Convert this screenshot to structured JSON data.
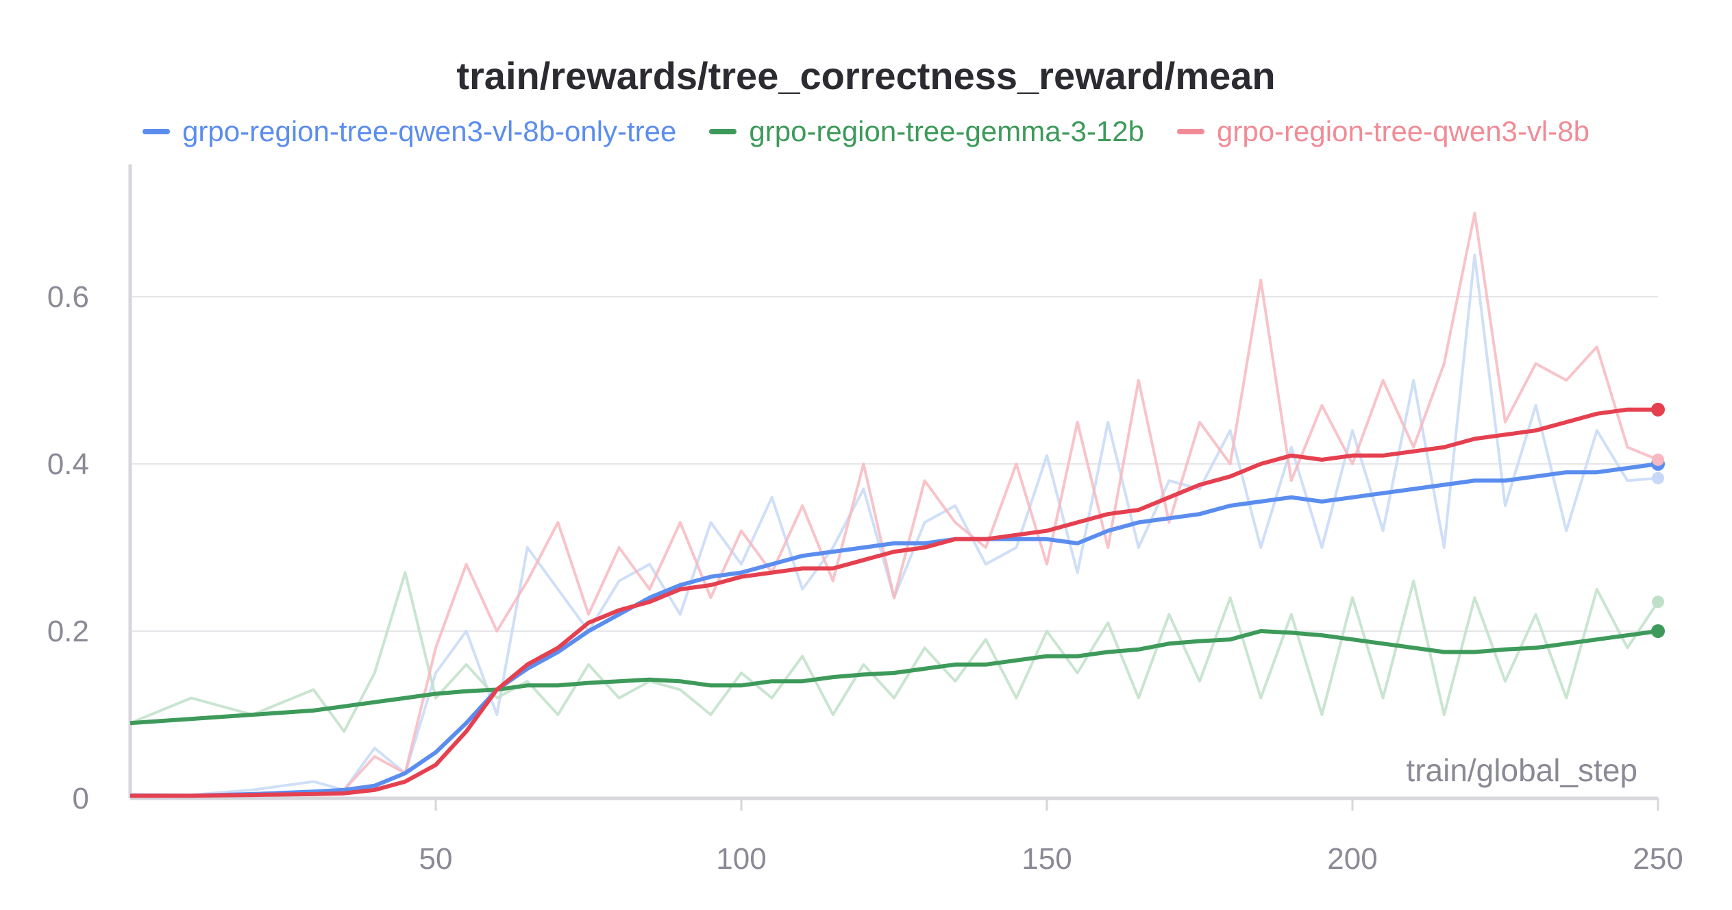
{
  "chart_data": {
    "type": "line",
    "title": "train/rewards/tree_correctness_reward/mean",
    "xlabel": "train/global_step",
    "ylabel": "",
    "xlim": [
      0,
      250
    ],
    "ylim": [
      0,
      0.75
    ],
    "x_ticks": [
      "50",
      "100",
      "150",
      "200",
      "250"
    ],
    "y_ticks": [
      "0",
      "0.2",
      "0.4",
      "0.6"
    ],
    "grid": true,
    "legend_position": "top",
    "series": [
      {
        "name": "grpo-region-tree-qwen3-vl-8b-only-tree",
        "color": "#5b8def",
        "raw_color": "#c7d9f7",
        "x": [
          0,
          10,
          20,
          30,
          35,
          40,
          45,
          50,
          55,
          60,
          65,
          70,
          75,
          80,
          85,
          90,
          95,
          100,
          105,
          110,
          115,
          120,
          125,
          130,
          135,
          140,
          145,
          150,
          155,
          160,
          165,
          170,
          175,
          180,
          185,
          190,
          195,
          200,
          205,
          210,
          215,
          220,
          225,
          230,
          235,
          240,
          245,
          250
        ],
        "smoothed": [
          0.003,
          0.003,
          0.005,
          0.008,
          0.01,
          0.015,
          0.03,
          0.055,
          0.09,
          0.13,
          0.155,
          0.175,
          0.2,
          0.22,
          0.24,
          0.255,
          0.265,
          0.27,
          0.28,
          0.29,
          0.295,
          0.3,
          0.305,
          0.305,
          0.31,
          0.31,
          0.31,
          0.31,
          0.305,
          0.32,
          0.33,
          0.335,
          0.34,
          0.35,
          0.355,
          0.36,
          0.355,
          0.36,
          0.365,
          0.37,
          0.375,
          0.38,
          0.38,
          0.385,
          0.39,
          0.39,
          0.395,
          0.4
        ],
        "raw": [
          0.005,
          0.004,
          0.01,
          0.02,
          0.01,
          0.06,
          0.03,
          0.15,
          0.2,
          0.1,
          0.3,
          0.25,
          0.2,
          0.26,
          0.28,
          0.22,
          0.33,
          0.28,
          0.36,
          0.25,
          0.3,
          0.37,
          0.24,
          0.33,
          0.35,
          0.28,
          0.3,
          0.41,
          0.27,
          0.45,
          0.3,
          0.38,
          0.37,
          0.44,
          0.3,
          0.42,
          0.3,
          0.44,
          0.32,
          0.5,
          0.3,
          0.65,
          0.35,
          0.47,
          0.32,
          0.44,
          0.38,
          0.383
        ]
      },
      {
        "name": "grpo-region-tree-gemma-3-12b",
        "color": "#3d9a5a",
        "raw_color": "#bfe0c8",
        "x": [
          0,
          10,
          20,
          30,
          35,
          40,
          45,
          50,
          55,
          60,
          65,
          70,
          75,
          80,
          85,
          90,
          95,
          100,
          105,
          110,
          115,
          120,
          125,
          130,
          135,
          140,
          145,
          150,
          155,
          160,
          165,
          170,
          175,
          180,
          185,
          190,
          195,
          200,
          205,
          210,
          215,
          220,
          225,
          230,
          235,
          240,
          245,
          250
        ],
        "smoothed": [
          0.09,
          0.095,
          0.1,
          0.105,
          0.11,
          0.115,
          0.12,
          0.125,
          0.128,
          0.13,
          0.135,
          0.135,
          0.138,
          0.14,
          0.142,
          0.14,
          0.135,
          0.135,
          0.14,
          0.14,
          0.145,
          0.148,
          0.15,
          0.155,
          0.16,
          0.16,
          0.165,
          0.17,
          0.17,
          0.175,
          0.178,
          0.185,
          0.188,
          0.19,
          0.2,
          0.198,
          0.195,
          0.19,
          0.185,
          0.18,
          0.175,
          0.175,
          0.178,
          0.18,
          0.185,
          0.19,
          0.195,
          0.2
        ],
        "raw": [
          0.09,
          0.12,
          0.1,
          0.13,
          0.08,
          0.15,
          0.27,
          0.12,
          0.16,
          0.12,
          0.14,
          0.1,
          0.16,
          0.12,
          0.14,
          0.13,
          0.1,
          0.15,
          0.12,
          0.17,
          0.1,
          0.16,
          0.12,
          0.18,
          0.14,
          0.19,
          0.12,
          0.2,
          0.15,
          0.21,
          0.12,
          0.22,
          0.14,
          0.24,
          0.12,
          0.22,
          0.1,
          0.24,
          0.12,
          0.26,
          0.1,
          0.24,
          0.14,
          0.22,
          0.12,
          0.25,
          0.18,
          0.235
        ]
      },
      {
        "name": "grpo-region-tree-qwen3-vl-8b",
        "color": "#e5404f",
        "raw_color": "#f7b8bf",
        "x": [
          0,
          10,
          20,
          30,
          35,
          40,
          45,
          50,
          55,
          60,
          65,
          70,
          75,
          80,
          85,
          90,
          95,
          100,
          105,
          110,
          115,
          120,
          125,
          130,
          135,
          140,
          145,
          150,
          155,
          160,
          165,
          170,
          175,
          180,
          185,
          190,
          195,
          200,
          205,
          210,
          215,
          220,
          225,
          230,
          235,
          240,
          245,
          250
        ],
        "smoothed": [
          0.003,
          0.003,
          0.004,
          0.005,
          0.006,
          0.01,
          0.02,
          0.04,
          0.08,
          0.13,
          0.16,
          0.18,
          0.21,
          0.225,
          0.235,
          0.25,
          0.255,
          0.265,
          0.27,
          0.275,
          0.275,
          0.285,
          0.295,
          0.3,
          0.31,
          0.31,
          0.315,
          0.32,
          0.33,
          0.34,
          0.345,
          0.36,
          0.375,
          0.385,
          0.4,
          0.41,
          0.405,
          0.41,
          0.41,
          0.415,
          0.42,
          0.43,
          0.435,
          0.44,
          0.45,
          0.46,
          0.465,
          0.465
        ],
        "raw": [
          0.004,
          0.003,
          0.005,
          0.006,
          0.01,
          0.05,
          0.03,
          0.18,
          0.28,
          0.2,
          0.26,
          0.33,
          0.22,
          0.3,
          0.25,
          0.33,
          0.24,
          0.32,
          0.27,
          0.35,
          0.26,
          0.4,
          0.24,
          0.38,
          0.33,
          0.3,
          0.4,
          0.28,
          0.45,
          0.3,
          0.5,
          0.33,
          0.45,
          0.4,
          0.62,
          0.38,
          0.47,
          0.4,
          0.5,
          0.42,
          0.52,
          0.7,
          0.45,
          0.52,
          0.5,
          0.54,
          0.42,
          0.405
        ]
      }
    ]
  }
}
